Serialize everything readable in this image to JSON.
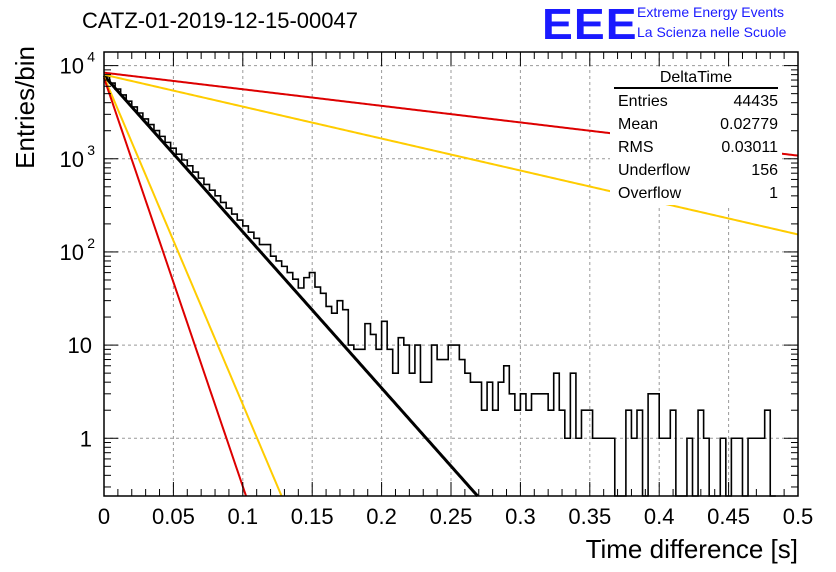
{
  "title": "CATZ-01-2019-12-15-00047",
  "logo": {
    "text": "EEE",
    "line1": "Extreme Energy Events",
    "line2": "La Scienza nelle Scuole",
    "color": "#1a1aff"
  },
  "stats_box": {
    "title": "DeltaTime",
    "rows": [
      {
        "label": "Entries",
        "value": "44435"
      },
      {
        "label": "Mean",
        "value": "0.02779"
      },
      {
        "label": "RMS",
        "value": "0.03011"
      },
      {
        "label": "Underflow",
        "value": "156"
      },
      {
        "label": "Overflow",
        "value": "1"
      }
    ]
  },
  "chart_data": {
    "type": "histogram",
    "xlabel": "Time difference [s]",
    "ylabel": "Entries/bin",
    "xlim": [
      0,
      0.5
    ],
    "ylim": [
      0.24,
      14000
    ],
    "y_log": true,
    "grid": true,
    "x_tick_labels": [
      "0",
      "0.05",
      "0.1",
      "0.15",
      "0.2",
      "0.25",
      "0.3",
      "0.35",
      "0.4",
      "0.45",
      "0.5"
    ],
    "y_tick_labels": [
      {
        "value": 1,
        "label": "1"
      },
      {
        "value": 10,
        "label": "10"
      },
      {
        "value": 100,
        "label": "10",
        "exp": "2"
      },
      {
        "value": 1000,
        "label": "10",
        "exp": "3"
      },
      {
        "value": 10000,
        "label": "10",
        "exp": "4"
      }
    ],
    "bin_width": 0.004,
    "histogram_counts": [
      7600,
      6500,
      5600,
      4850,
      4150,
      3600,
      3100,
      2680,
      2330,
      2010,
      1740,
      1500,
      1300,
      1120,
      970,
      840,
      720,
      620,
      530,
      460,
      400,
      340,
      295,
      255,
      220,
      190,
      163,
      140,
      120,
      120,
      90,
      80,
      70,
      60,
      51,
      41,
      53,
      60,
      42,
      36,
      26,
      22,
      30,
      24,
      10,
      9,
      9,
      17,
      13,
      9,
      18,
      9,
      5,
      12,
      10,
      5,
      10,
      4,
      4,
      10,
      7,
      7,
      10,
      10,
      7,
      5,
      4,
      4,
      2,
      4,
      2,
      4,
      6,
      3,
      2,
      3,
      2,
      3,
      3,
      3,
      2,
      5,
      2,
      1,
      5,
      1,
      2,
      2,
      1,
      1,
      1,
      1,
      0.2,
      0.2,
      2,
      1,
      2,
      0.2,
      3,
      3,
      1,
      1,
      2,
      0.2,
      0.2,
      1,
      0.2,
      2,
      1,
      0.2,
      0.2,
      1,
      0.2,
      1,
      1,
      0.2,
      1,
      1,
      1,
      2,
      0.2
    ],
    "series": [
      {
        "function": "exponential",
        "color": "#000000",
        "y0": 7800,
        "slope": -38.6
      },
      {
        "function": "exponential",
        "color": "#ffcc00",
        "y0": 7600,
        "slope": -81.0
      },
      {
        "function": "exponential",
        "color": "#dd0000",
        "y0": 7400,
        "slope": -101.0
      },
      {
        "function": "exponential",
        "color": "#ffcc00",
        "y0": 8000,
        "slope": -7.9
      },
      {
        "function": "exponential",
        "color": "#dd0000",
        "y0": 8400,
        "slope": -4.1
      }
    ]
  }
}
